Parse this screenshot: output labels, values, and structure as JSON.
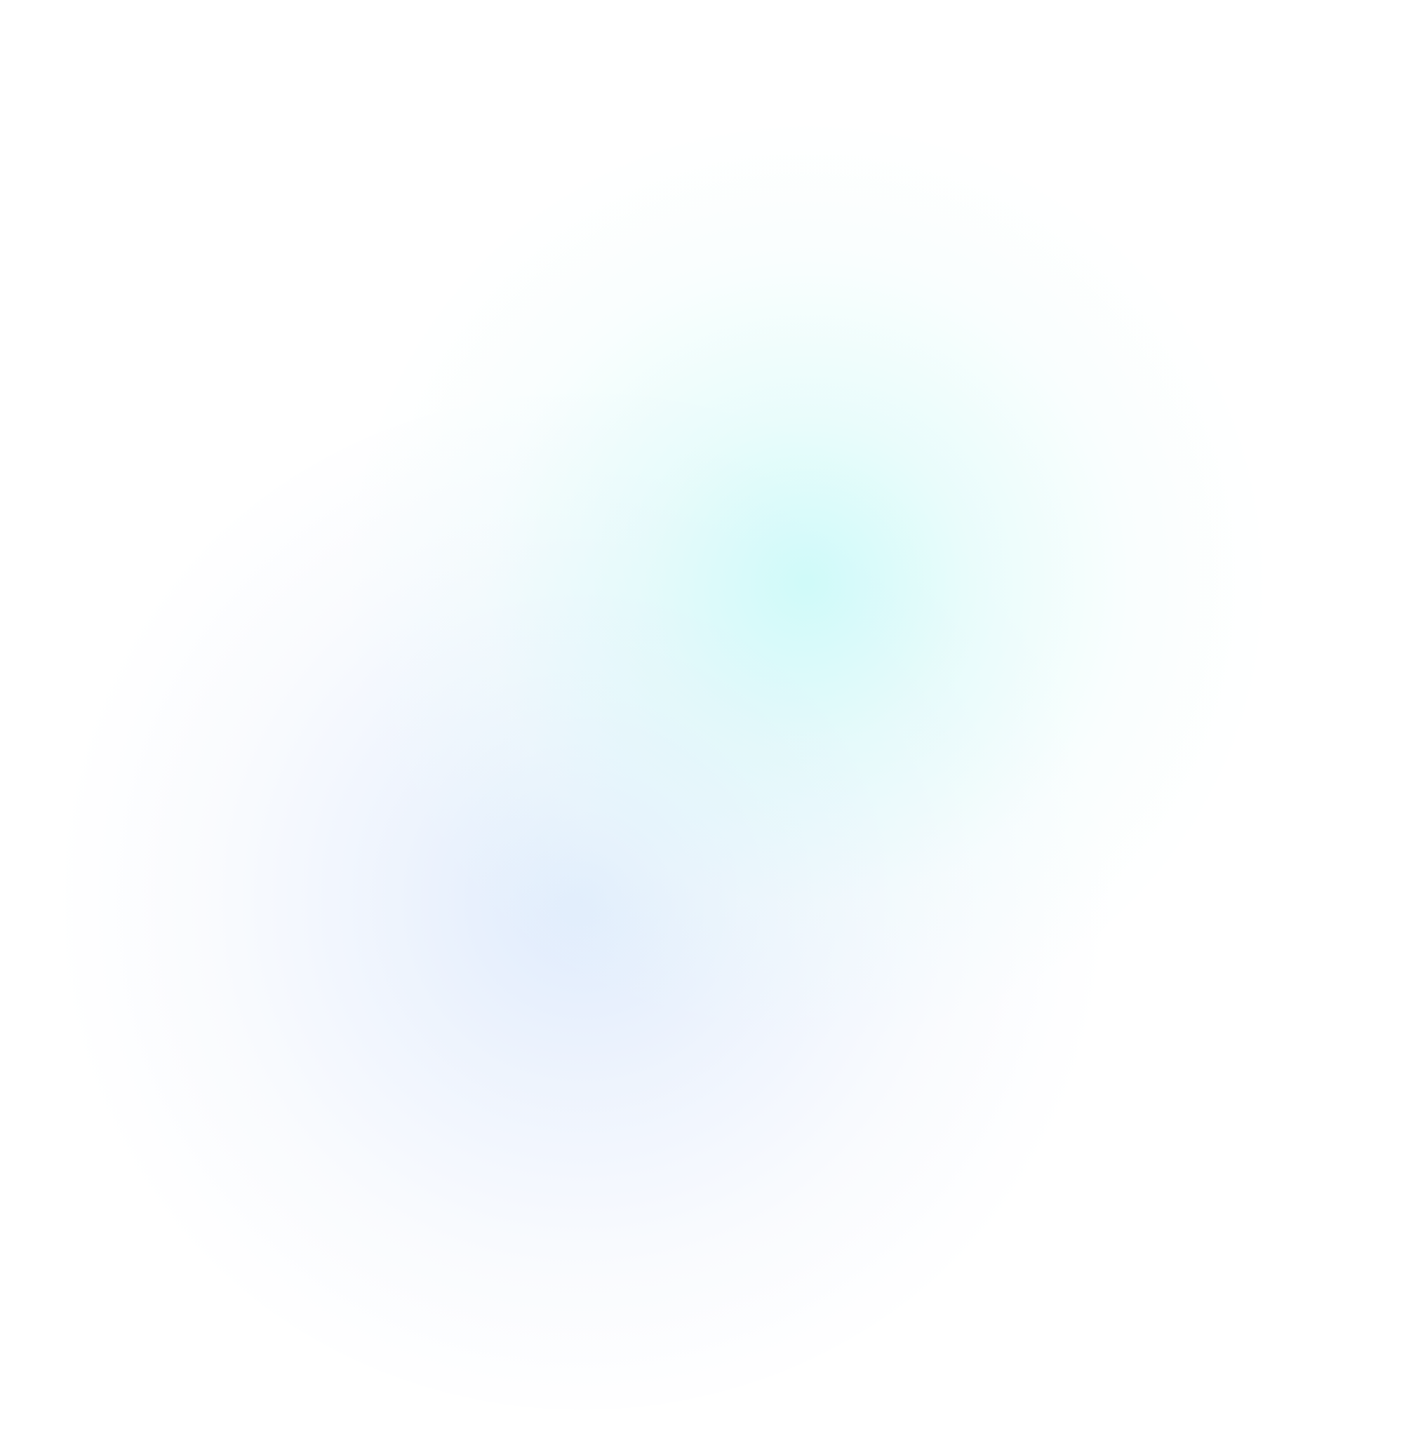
{
  "background": {
    "base_color": "#ffffff",
    "glow_colors": [
      "#c8faf8",
      "#dae8fc"
    ]
  }
}
